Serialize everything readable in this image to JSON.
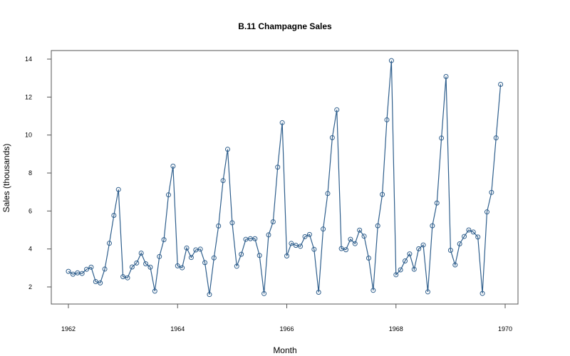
{
  "chart_data": {
    "type": "line",
    "title": "B.11  Champagne Sales",
    "xlabel": "Month",
    "ylabel": "Sales (thousands)",
    "xlim": [
      1962,
      1970
    ],
    "ylim": [
      2,
      14
    ],
    "x_ticks": [
      "1962",
      "1964",
      "1966",
      "1968",
      "1970"
    ],
    "y_ticks": [
      "2",
      "4",
      "6",
      "8",
      "10",
      "12",
      "14"
    ],
    "grid": false,
    "legend": "none",
    "markers": "open-circle",
    "series_color": "#2E5E8C",
    "series": [
      {
        "start": 1962,
        "step": "monthly",
        "values": [
          2.82,
          2.67,
          2.74,
          2.71,
          2.93,
          3.04,
          2.28,
          2.21,
          2.94,
          4.3,
          5.77,
          7.13,
          2.54,
          2.48,
          3.05,
          3.26,
          3.78,
          3.22,
          3.04,
          1.78,
          3.6,
          4.49,
          6.85,
          8.36,
          3.11,
          3.01,
          4.05,
          3.55,
          3.95,
          3.99,
          3.28,
          1.6,
          3.53,
          5.21,
          7.6,
          9.25,
          5.38,
          3.09,
          3.72,
          4.51,
          4.54,
          4.54,
          3.66,
          1.65,
          4.74,
          5.43,
          8.31,
          10.65,
          3.63,
          4.29,
          4.19,
          4.14,
          4.65,
          4.76,
          3.98,
          1.72,
          5.05,
          6.92,
          9.86,
          11.33,
          4.02,
          3.96,
          4.51,
          4.28,
          4.99,
          4.67,
          3.52,
          1.82,
          5.22,
          6.87,
          10.8,
          13.92,
          2.64,
          2.9,
          3.37,
          3.74,
          2.93,
          4.01,
          4.21,
          1.74,
          5.22,
          6.42,
          9.84,
          13.08,
          3.93,
          3.16,
          4.27,
          4.66,
          5.0,
          4.89,
          4.63,
          1.66,
          5.95,
          6.98,
          9.85,
          12.67
        ]
      }
    ]
  }
}
